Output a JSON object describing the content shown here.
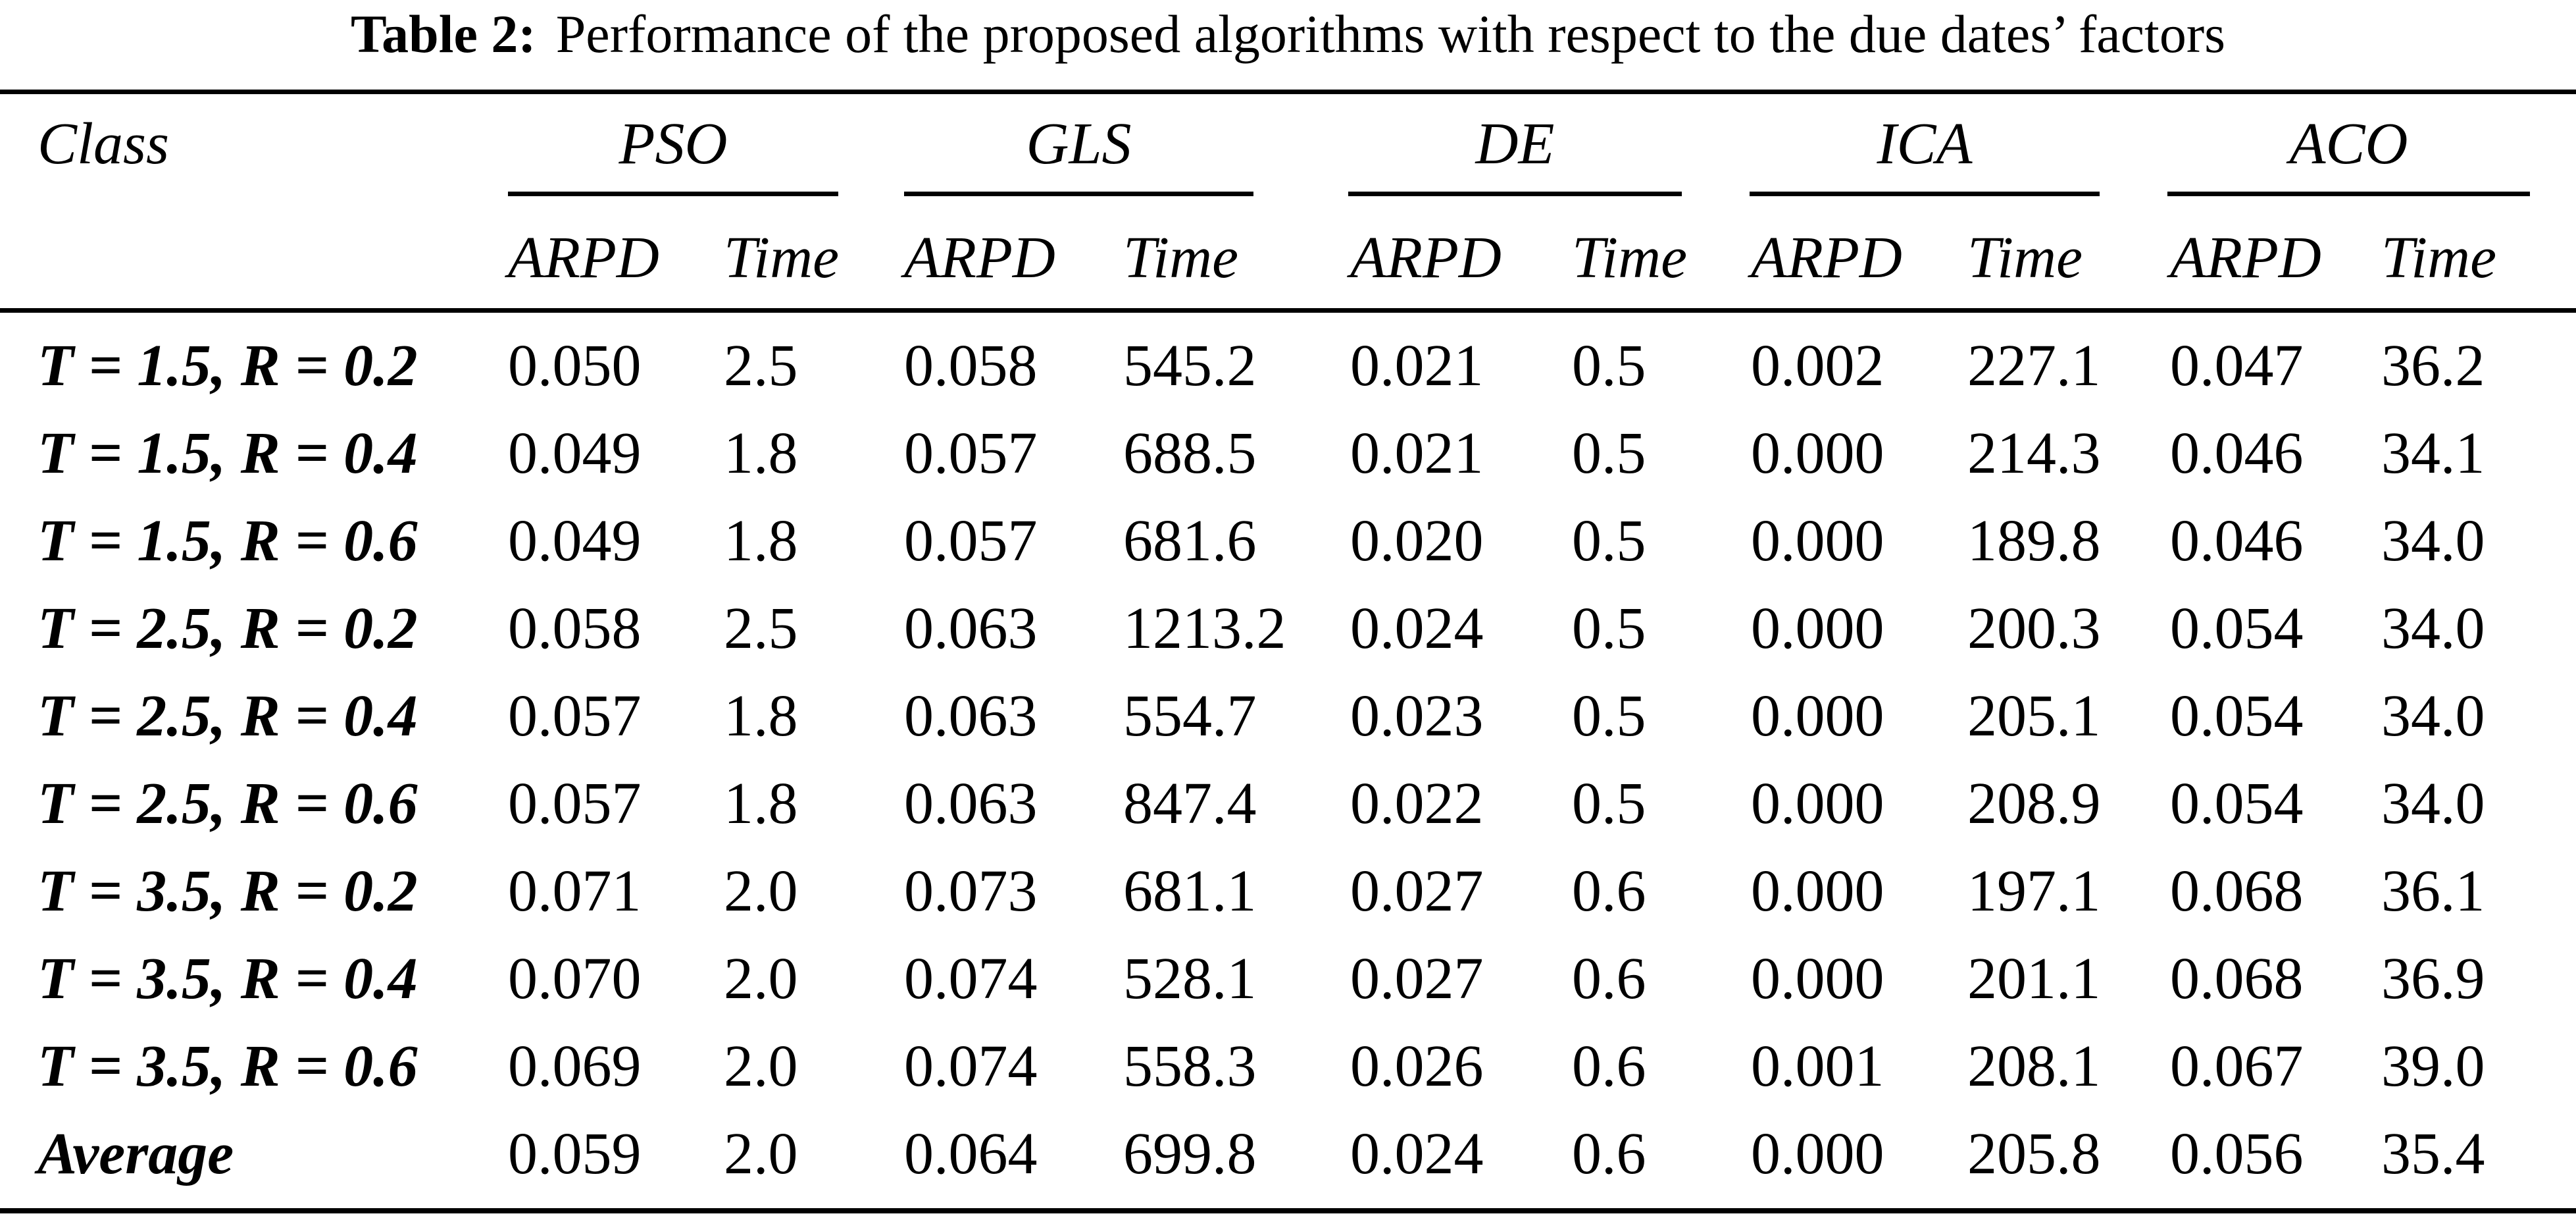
{
  "title": {
    "label": "Table 2:",
    "text": "Performance of the proposed algorithms with respect to the due dates’ factors"
  },
  "table": {
    "class_header": "Class",
    "groups": [
      "PSO",
      "GLS",
      "DE",
      "ICA",
      "ACO"
    ],
    "subheaders": {
      "arpd": "ARPD",
      "time": "Time"
    },
    "rows": [
      {
        "label": "T = 1.5, R = 0.2",
        "values": [
          "0.050",
          "2.5",
          "0.058",
          "545.2",
          "0.021",
          "0.5",
          "0.002",
          "227.1",
          "0.047",
          "36.2"
        ]
      },
      {
        "label": "T = 1.5, R = 0.4",
        "values": [
          "0.049",
          "1.8",
          "0.057",
          "688.5",
          "0.021",
          "0.5",
          "0.000",
          "214.3",
          "0.046",
          "34.1"
        ]
      },
      {
        "label": "T = 1.5, R = 0.6",
        "values": [
          "0.049",
          "1.8",
          "0.057",
          "681.6",
          "0.020",
          "0.5",
          "0.000",
          "189.8",
          "0.046",
          "34.0"
        ]
      },
      {
        "label": "T = 2.5, R = 0.2",
        "values": [
          "0.058",
          "2.5",
          "0.063",
          "1213.2",
          "0.024",
          "0.5",
          "0.000",
          "200.3",
          "0.054",
          "34.0"
        ]
      },
      {
        "label": "T = 2.5, R = 0.4",
        "values": [
          "0.057",
          "1.8",
          "0.063",
          "554.7",
          "0.023",
          "0.5",
          "0.000",
          "205.1",
          "0.054",
          "34.0"
        ]
      },
      {
        "label": "T = 2.5, R = 0.6",
        "values": [
          "0.057",
          "1.8",
          "0.063",
          "847.4",
          "0.022",
          "0.5",
          "0.000",
          "208.9",
          "0.054",
          "34.0"
        ]
      },
      {
        "label": "T = 3.5, R = 0.2",
        "values": [
          "0.071",
          "2.0",
          "0.073",
          "681.1",
          "0.027",
          "0.6",
          "0.000",
          "197.1",
          "0.068",
          "36.1"
        ]
      },
      {
        "label": "T = 3.5, R = 0.4",
        "values": [
          "0.070",
          "2.0",
          "0.074",
          "528.1",
          "0.027",
          "0.6",
          "0.000",
          "201.1",
          "0.068",
          "36.9"
        ]
      },
      {
        "label": "T = 3.5, R = 0.6",
        "values": [
          "0.069",
          "2.0",
          "0.074",
          "558.3",
          "0.026",
          "0.6",
          "0.001",
          "208.1",
          "0.067",
          "39.0"
        ]
      },
      {
        "label": "Average",
        "values": [
          "0.059",
          "2.0",
          "0.064",
          "699.8",
          "0.024",
          "0.6",
          "0.000",
          "205.8",
          "0.056",
          "35.4"
        ]
      }
    ]
  }
}
